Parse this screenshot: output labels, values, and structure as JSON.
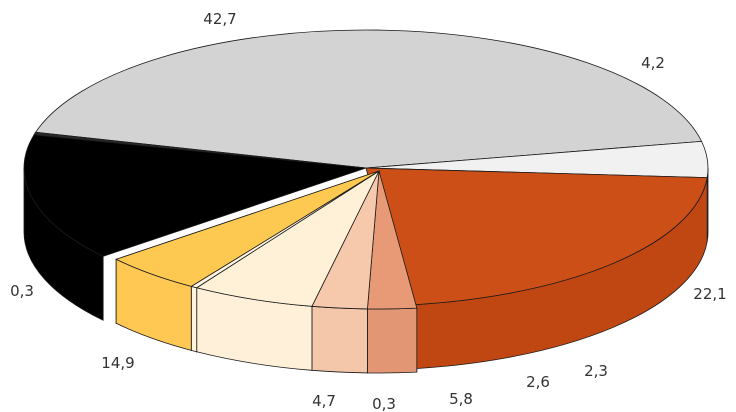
{
  "chart_data": {
    "type": "pie",
    "style": "3d-exploded",
    "title": "",
    "start_label": "42,7",
    "slices": [
      {
        "label": "42,7",
        "value": 42.7,
        "color": "#d3d3d3",
        "side": "#c4c4c4",
        "explode": false
      },
      {
        "label": "4,2",
        "value": 4.2,
        "color": "#f1f1f1",
        "side": "#e2e2e2",
        "explode": false
      },
      {
        "label": "22,1",
        "value": 22.1,
        "color": "#cc4f17",
        "side": "#c04712",
        "explode": false
      },
      {
        "label": "2,3",
        "value": 2.3,
        "color": "#e89a76",
        "side": "#e29674",
        "explode": true
      },
      {
        "label": "2,6",
        "value": 2.6,
        "color": "#f6c9ac",
        "side": "#f4c6aa",
        "explode": true
      },
      {
        "label": "5,8",
        "value": 5.8,
        "color": "#fff1d8",
        "side": "#fff1d9",
        "explode": true
      },
      {
        "label": "0,3",
        "value": 0.3,
        "color": "#fff6e2",
        "side": "#fff4dc",
        "explode": true
      },
      {
        "label": "4,7",
        "value": 4.7,
        "color": "#fec951",
        "side": "#fec853",
        "explode": true
      },
      {
        "label": "14,9",
        "value": 14.9,
        "color": "#000000",
        "side": "#000000",
        "explode": false
      },
      {
        "label": "0,3",
        "value": 0.3,
        "color": "#2a2a2a",
        "side": "#9a9a9a",
        "explode": false
      }
    ]
  }
}
